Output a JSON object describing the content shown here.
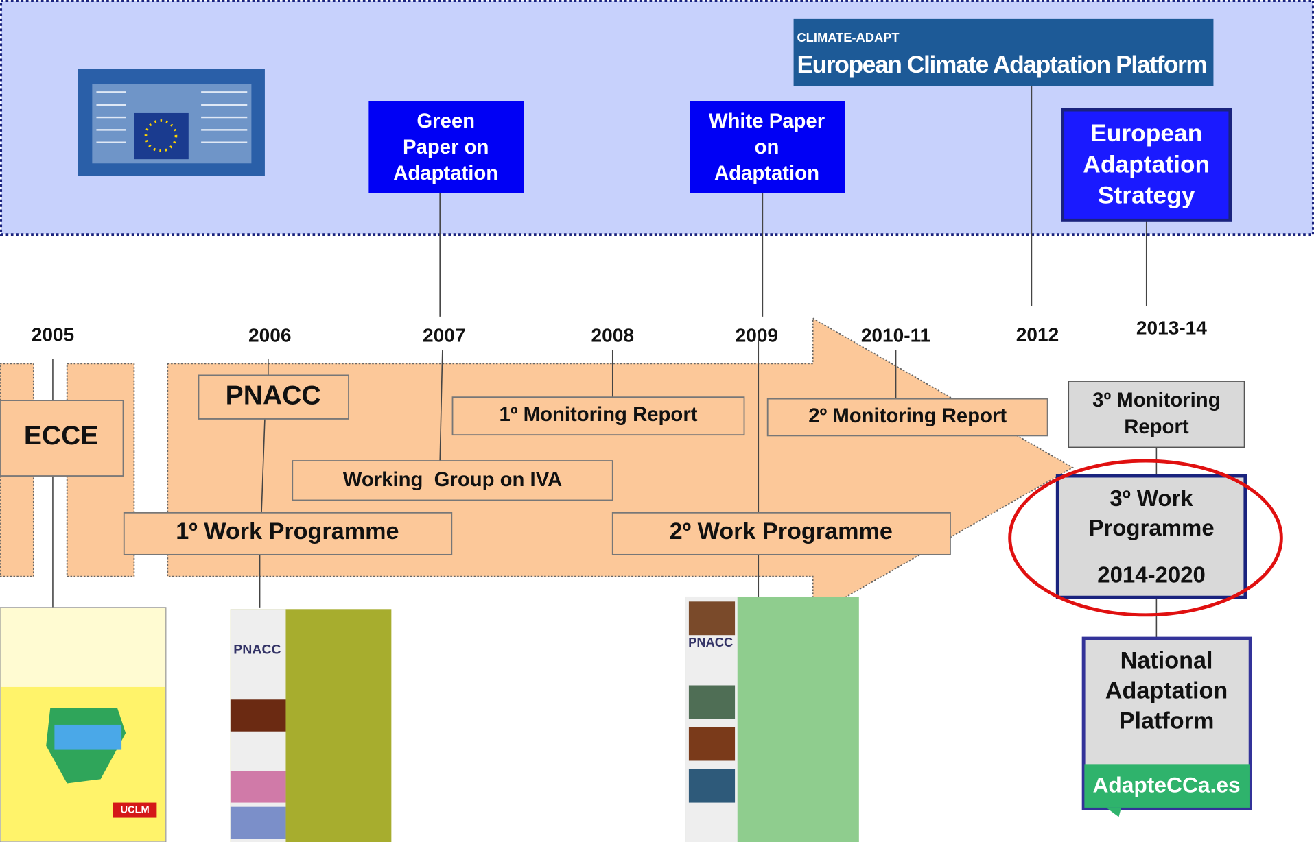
{
  "eu_band": {
    "climate_adapt": {
      "small": "CLIMATE-ADAPT",
      "title": "European Climate Adaptation Platform"
    },
    "green_paper": [
      "Green",
      "Paper on",
      "Adaptation"
    ],
    "white_paper": [
      "White Paper",
      "on",
      "Adaptation"
    ],
    "strategy": [
      "European",
      "Adaptation",
      "Strategy"
    ]
  },
  "years": [
    "2005",
    "2006",
    "2007",
    "2008",
    "2009",
    "2010-11",
    "2012",
    "2013-14"
  ],
  "boxes": {
    "ecce": "ECCE",
    "pnacc": "PNACC",
    "monitoring_1": "1º Monitoring Report",
    "monitoring_2": "2º Monitoring Report",
    "working_group": "Working  Group on IVA",
    "work_programme_1": "1º Work Programme",
    "work_programme_2": "2º Work Programme",
    "monitoring_3": [
      "3º Monitoring",
      "Report"
    ],
    "work_programme_3": [
      "3º Work",
      "Programme",
      "2014-2020"
    ],
    "platform": [
      "National",
      "Adaptation",
      "Platform"
    ],
    "platform_logo": "AdapteCCa.es"
  },
  "covers": {
    "pnacc_1": "PNACC",
    "pnacc_2": "PNACC",
    "uclm": "UCLM"
  }
}
